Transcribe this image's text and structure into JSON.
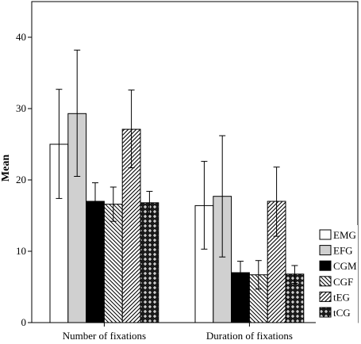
{
  "chart_data": {
    "type": "bar",
    "title": "",
    "xlabel": "",
    "ylabel": "Mean",
    "ylim": [
      0,
      45
    ],
    "yticks": [
      0,
      10,
      20,
      30,
      40
    ],
    "grid": false,
    "legend_position": "right",
    "categories": [
      "Number of fixations",
      "Duration of fixations"
    ],
    "series": [
      {
        "name": "EMG",
        "pattern": "white",
        "values": [
          25.0,
          16.4
        ],
        "err_low": [
          17.4,
          10.3
        ],
        "err_high": [
          32.7,
          22.6
        ]
      },
      {
        "name": "EFG",
        "pattern": "lightgray",
        "values": [
          29.3,
          17.7
        ],
        "err_low": [
          20.5,
          9.2
        ],
        "err_high": [
          38.2,
          26.2
        ]
      },
      {
        "name": "CGM",
        "pattern": "black",
        "values": [
          17.0,
          7.0
        ],
        "err_low": [
          14.3,
          5.4
        ],
        "err_high": [
          19.6,
          8.6
        ]
      },
      {
        "name": "CGF",
        "pattern": "back-diagonal",
        "values": [
          16.6,
          6.7
        ],
        "err_low": [
          14.2,
          4.7
        ],
        "err_high": [
          19.0,
          8.7
        ]
      },
      {
        "name": "tEG",
        "pattern": "forward-diagonal",
        "values": [
          27.1,
          17.0
        ],
        "err_low": [
          21.7,
          12.1
        ],
        "err_high": [
          32.6,
          21.8
        ]
      },
      {
        "name": "tCG",
        "pattern": "crosses",
        "values": [
          16.8,
          6.8
        ],
        "err_low": [
          15.2,
          5.5
        ],
        "err_high": [
          18.4,
          8.0
        ]
      }
    ]
  }
}
